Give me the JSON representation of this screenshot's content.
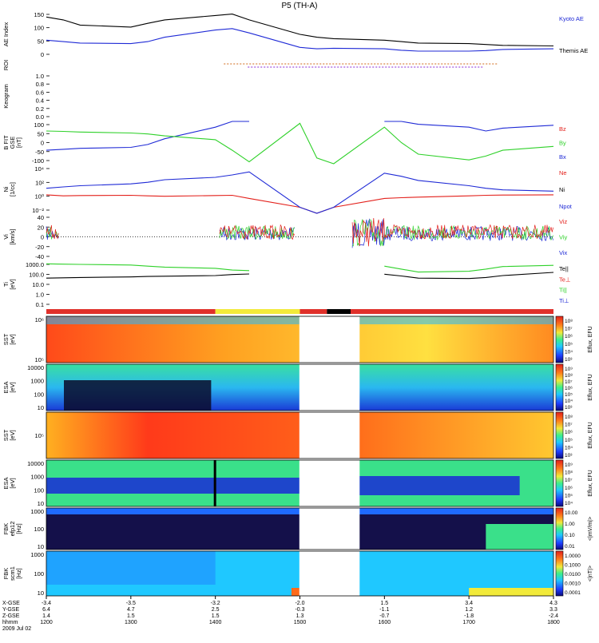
{
  "title": "P5 (TH-A)",
  "colors": {
    "black": "#000000",
    "blue": "#1f2ad6",
    "red": "#e3201b",
    "green": "#2fd12a",
    "bar_red": "#e0302a",
    "bar_yellow": "#f2ea3a",
    "bar_black": "#000000"
  },
  "panels": [
    {
      "id": "ae",
      "ylabel": [
        "AE Index"
      ],
      "ticks": [
        "150",
        "100",
        "50",
        "0"
      ],
      "legend": [
        {
          "text": "Kyoto AE",
          "color": "#1f2ad6"
        },
        {
          "text": "Themis AE",
          "color": "#000000"
        }
      ]
    },
    {
      "id": "roi",
      "ylabel": [
        "ROI"
      ],
      "ticks": [],
      "legend": []
    },
    {
      "id": "keogram",
      "ylabel": [
        "Keogram"
      ],
      "ticks": [
        "1.0",
        "0.8",
        "0.6",
        "0.4",
        "0.2",
        "0.0"
      ],
      "legend": []
    },
    {
      "id": "bfit",
      "ylabel": [
        "B FIT",
        "GSE",
        "[nT]"
      ],
      "ticks": [
        "100",
        "50",
        "0",
        "-50",
        "-100"
      ],
      "legend": [
        {
          "text": "Bz",
          "color": "#e3201b"
        },
        {
          "text": "By",
          "color": "#2fd12a"
        },
        {
          "text": "Bx",
          "color": "#1f2ad6"
        }
      ]
    },
    {
      "id": "ni",
      "ylabel": [
        "Ni",
        "[1/cc]"
      ],
      "ticks": [
        "10⁴",
        "10²",
        "10⁰",
        "10⁻²"
      ],
      "legend": [
        {
          "text": "Ne",
          "color": "#e3201b"
        },
        {
          "text": "Ni",
          "color": "#000000"
        },
        {
          "text": "Npot",
          "color": "#1f2ad6"
        }
      ]
    },
    {
      "id": "vi",
      "ylabel": [
        "Vi",
        "[km/s]"
      ],
      "ticks": [
        "40",
        "20",
        "0",
        "-20",
        "-40"
      ],
      "legend": [
        {
          "text": "Viz",
          "color": "#e3201b"
        },
        {
          "text": "Viy",
          "color": "#2fd12a"
        },
        {
          "text": "Vix",
          "color": "#1f2ad6"
        }
      ]
    },
    {
      "id": "ti",
      "ylabel": [
        "Ti",
        "[eV]"
      ],
      "ticks": [
        "1000.0",
        "100.0",
        "10.0",
        "1.0",
        "0.1"
      ],
      "legend": [
        {
          "text": "Te||",
          "color": "#000000"
        },
        {
          "text": "Te⊥",
          "color": "#e3201b"
        },
        {
          "text": "Ti||",
          "color": "#2fd12a"
        },
        {
          "text": "Ti⊥",
          "color": "#1f2ad6"
        }
      ]
    },
    {
      "id": "sst_e",
      "ylabel": [
        "SST",
        "[eV]"
      ],
      "ticks": [
        "10⁶",
        "10⁵"
      ],
      "cbar_ticks": [
        "10⁸",
        "10⁷",
        "10⁶",
        "10⁵",
        "10⁴",
        "10³"
      ],
      "cbar_label": "Eflux, EFU"
    },
    {
      "id": "esa_e",
      "ylabel": [
        "ESA",
        "[eV]"
      ],
      "ticks": [
        "10000",
        "1000",
        "100",
        "10"
      ],
      "cbar_ticks": [
        "10⁹",
        "10⁸",
        "10⁷",
        "10⁶",
        "10⁵",
        "10⁴",
        "10³"
      ],
      "cbar_label": "Eflux, EFU"
    },
    {
      "id": "sst_i",
      "ylabel": [
        "SST",
        "[eV]"
      ],
      "ticks": [
        "10⁵"
      ],
      "cbar_ticks": [
        "10⁸",
        "10⁷",
        "10⁶",
        "10⁵",
        "10⁴",
        "10³"
      ],
      "cbar_label": "Eflux, EFU"
    },
    {
      "id": "esa_i",
      "ylabel": [
        "ESA",
        "[eV]"
      ],
      "ticks": [
        "10000",
        "1000",
        "100",
        "10"
      ],
      "cbar_ticks": [
        "10⁹",
        "10⁸",
        "10⁷",
        "10⁶",
        "10⁵",
        "10⁴"
      ],
      "cbar_label": "Eflux, EFU"
    },
    {
      "id": "fbk_e",
      "ylabel": [
        "FBK",
        "efp12",
        "[Hz]"
      ],
      "ticks": [
        "1000",
        "100",
        "10"
      ],
      "cbar_ticks": [
        "10.00",
        "1.00",
        "0.10",
        "0.01"
      ],
      "cbar_label": "<|mV/m|>"
    },
    {
      "id": "fbk_b",
      "ylabel": [
        "FBK",
        "scm1",
        "[Hz]"
      ],
      "ticks": [
        "1000",
        "100",
        "10"
      ],
      "cbar_ticks": [
        "1.0000",
        "0.1000",
        "0.0100",
        "0.0010",
        "0.0001"
      ],
      "cbar_label": "<|nT|>"
    }
  ],
  "status_bar": [
    {
      "state": "red",
      "from": 1200,
      "to": 1400
    },
    {
      "state": "yellow",
      "from": 1400,
      "to": 1500
    },
    {
      "state": "red",
      "from": 1500,
      "to": 1532
    },
    {
      "state": "black",
      "from": 1532,
      "to": 1560
    },
    {
      "state": "red",
      "from": 1560,
      "to": 1800
    }
  ],
  "xaxis": {
    "row_labels": [
      "X-GSE",
      "Y-GSE",
      "Z-GSE",
      "hhmm",
      "2009 Jul 02"
    ],
    "columns": [
      [
        "-3.4",
        "6.4",
        "1.4",
        "1200"
      ],
      [
        "-3.5",
        "4.7",
        "1.5",
        "1300"
      ],
      [
        "-3.2",
        "2.5",
        "1.5",
        "1400"
      ],
      [
        "-2.0",
        "-0.3",
        "1.3",
        "1500"
      ],
      [
        "1.5",
        "-1.1",
        "-0.7",
        "1600"
      ],
      [
        "3.4",
        "1.2",
        "-1.8",
        "1700"
      ],
      [
        "4.3",
        "3.3",
        "-2.4",
        "1800"
      ]
    ]
  },
  "chart_data": {
    "type": "line",
    "title": "P5 (TH-A)",
    "x": [
      1200,
      1220,
      1240,
      1300,
      1320,
      1340,
      1400,
      1420,
      1440,
      1500,
      1520,
      1540,
      1600,
      1620,
      1640,
      1700,
      1720,
      1740,
      1800
    ],
    "xlim": [
      1200,
      1800
    ],
    "series": [
      {
        "name": "Kyoto AE",
        "panel": "ae",
        "values": [
          60,
          55,
          50,
          48,
          55,
          70,
          95,
          100,
          85,
          35,
          30,
          32,
          30,
          25,
          22,
          22,
          24,
          28,
          30
        ]
      },
      {
        "name": "Themis AE",
        "panel": "ae",
        "values": [
          140,
          130,
          112,
          105,
          118,
          130,
          145,
          150,
          130,
          80,
          70,
          65,
          60,
          55,
          50,
          48,
          45,
          42,
          40
        ]
      },
      {
        "name": "Bx",
        "panel": "bfit",
        "values": [
          -40,
          -35,
          -30,
          -25,
          -10,
          20,
          80,
          110,
          130,
          null,
          null,
          null,
          120,
          110,
          95,
          80,
          60,
          75,
          90
        ]
      },
      {
        "name": "By",
        "panel": "bfit",
        "values": [
          60,
          58,
          55,
          50,
          45,
          35,
          15,
          -40,
          -100,
          100,
          -80,
          -110,
          80,
          0,
          -60,
          -90,
          -70,
          -40,
          -20
        ]
      },
      {
        "name": "Ne",
        "panel": "ni",
        "values": [
          1.2,
          0.8,
          0.9,
          1.0,
          0.8,
          0.7,
          0.9,
          1.0,
          0.3,
          0.01,
          0.001,
          0.01,
          0.3,
          0.4,
          0.5,
          0.8,
          1.0,
          1.1,
          1.2
        ]
      },
      {
        "name": "Npot",
        "panel": "ni",
        "values": [
          15,
          25,
          40,
          80,
          150,
          400,
          1000,
          2500,
          8000,
          0.01,
          0.001,
          0.01,
          5000,
          1500,
          300,
          40,
          15,
          8,
          5
        ]
      },
      {
        "name": "Te||",
        "panel": "ti",
        "values": [
          60,
          65,
          70,
          80,
          90,
          95,
          110,
          140,
          160,
          null,
          null,
          null,
          150,
          100,
          60,
          55,
          70,
          110,
          230
        ]
      },
      {
        "name": "Ti||",
        "panel": "ti",
        "values": [
          1700,
          1600,
          1500,
          1300,
          1000,
          800,
          600,
          400,
          350,
          null,
          null,
          null,
          1000,
          500,
          250,
          300,
          500,
          900,
          1200
        ]
      }
    ],
    "roi_marks": {
      "from": 1410,
      "to": 1735
    },
    "gaps": [
      {
        "panel": "vi",
        "from": 1510,
        "to": 1555
      },
      {
        "panel": "spectrograms",
        "from": 1505,
        "to": 1565
      }
    ],
    "grid": false,
    "legend": "right"
  }
}
